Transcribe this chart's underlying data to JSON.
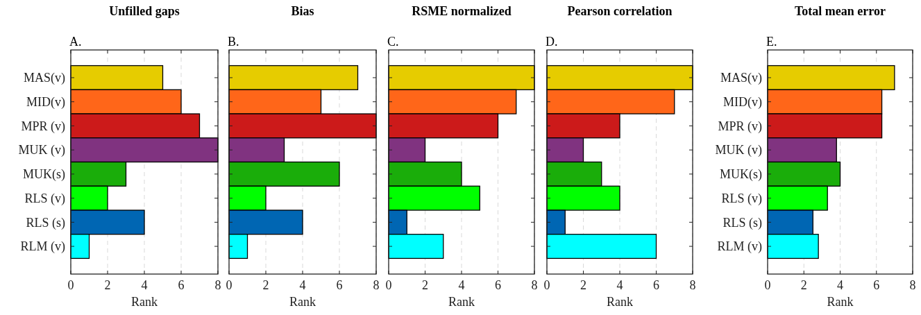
{
  "chart_data": [
    {
      "type": "bar",
      "orientation": "horizontal",
      "title": "Unfilled gaps",
      "annotations": [
        "A."
      ],
      "xlabel": "Rank",
      "categories": [
        "MAS(v)",
        "MID(v)",
        "MPR (v)",
        "MUK (v)",
        "MUK(s)",
        "RLS (v)",
        "RLS (s)",
        "RLM (v)"
      ],
      "values": [
        5,
        6,
        7,
        8,
        3,
        2,
        4,
        1
      ],
      "colors": [
        "#e6cc00",
        "#ff6619",
        "#cc1a1a",
        "#803380",
        "#1aad0a",
        "#00ff00",
        "#0066b3",
        "#00ffff"
      ],
      "xlim": [
        0,
        8
      ],
      "xticks": [
        0,
        2,
        4,
        6,
        8
      ],
      "grid": "x"
    },
    {
      "type": "bar",
      "orientation": "horizontal",
      "title": "Bias",
      "annotations": [
        "B."
      ],
      "xlabel": "Rank",
      "categories": [
        null,
        null,
        null,
        null,
        null,
        null,
        null,
        null
      ],
      "values": [
        7,
        5,
        8,
        3,
        6,
        2,
        4,
        1
      ],
      "colors": [
        "#e6cc00",
        "#ff6619",
        "#cc1a1a",
        "#803380",
        "#1aad0a",
        "#00ff00",
        "#0066b3",
        "#00ffff"
      ],
      "xlim": [
        0,
        8
      ],
      "xticks": [
        0,
        2,
        4,
        6,
        8
      ],
      "grid": "x",
      "tick_labels": "x"
    },
    {
      "type": "bar",
      "orientation": "horizontal",
      "title": "RSME normalized",
      "annotations": [
        "C."
      ],
      "xlabel": "Rank",
      "categories": [
        null,
        null,
        null,
        null,
        null,
        null,
        null,
        null
      ],
      "values": [
        8,
        7,
        6,
        2,
        4,
        5,
        1,
        3
      ],
      "colors": [
        "#e6cc00",
        "#ff6619",
        "#cc1a1a",
        "#803380",
        "#1aad0a",
        "#00ff00",
        "#0066b3",
        "#00ffff"
      ],
      "xlim": [
        0,
        8
      ],
      "xticks": [
        0,
        2,
        4,
        6,
        8
      ],
      "grid": "x",
      "tick_labels": "x"
    },
    {
      "type": "bar",
      "orientation": "horizontal",
      "title": "Pearson correlation",
      "annotations": [
        "D."
      ],
      "xlabel": "Rank",
      "categories": [
        null,
        null,
        null,
        null,
        null,
        null,
        null,
        null
      ],
      "values": [
        8,
        7,
        4,
        2,
        3,
        4,
        1,
        6
      ],
      "colors": [
        "#e6cc00",
        "#ff6619",
        "#cc1a1a",
        "#803380",
        "#1aad0a",
        "#00ff00",
        "#0066b3",
        "#00ffff"
      ],
      "xlim": [
        0,
        8
      ],
      "xticks": [
        0,
        2,
        4,
        6,
        8
      ],
      "grid": "x",
      "tick_labels": "x"
    },
    {
      "type": "bar",
      "orientation": "horizontal",
      "title": "Total mean error",
      "annotations": [
        "E."
      ],
      "xlabel": "Rank",
      "categories": [
        "MAS(v)",
        "MID(v)",
        "MPR (v)",
        "MUK (v)",
        "MUK(s)",
        "RLS (v)",
        "RLS (s)",
        "RLM (v)"
      ],
      "values": [
        7,
        6.3,
        6.3,
        3.8,
        4,
        3.3,
        2.5,
        2.8
      ],
      "colors": [
        "#e6cc00",
        "#ff6619",
        "#cc1a1a",
        "#803380",
        "#1aad0a",
        "#00ff00",
        "#0066b3",
        "#00ffff"
      ],
      "xlim": [
        0,
        8
      ],
      "xticks": [
        0,
        2,
        4,
        6,
        8
      ],
      "grid": "x"
    }
  ]
}
